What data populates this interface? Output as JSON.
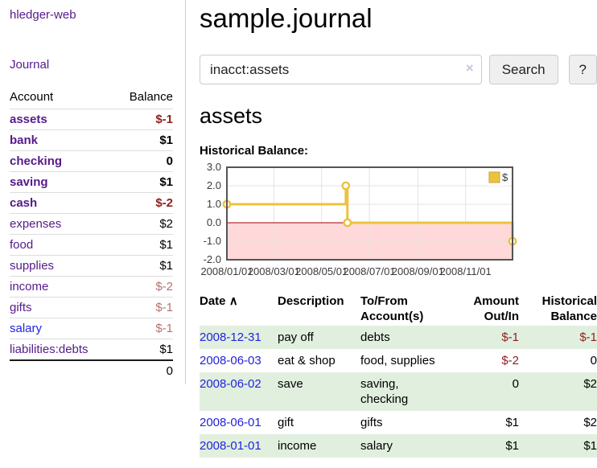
{
  "colors": {
    "link_purple": "#551a8b",
    "link_blue": "#2323dc",
    "negative_strong": "#8f1d1d",
    "negative_soft": "#b47272",
    "row_green": "#e1efdf",
    "chart_line_gold": "#edc240",
    "chart_negative_fill": "#ffd9d9",
    "chart_zero_line": "#aa0000"
  },
  "sidebar": {
    "app_title": "hledger-web",
    "journal_label": "Journal",
    "accounts_table": {
      "headers": {
        "account": "Account",
        "balance": "Balance"
      },
      "rows": [
        {
          "account": "assets",
          "balance": "$-1",
          "level": 1,
          "bold": true,
          "balance_style": "neg-strong",
          "link": "purple"
        },
        {
          "account": "bank",
          "balance": "$1",
          "level": 2,
          "bold": true,
          "balance_style": "normal",
          "link": "purple"
        },
        {
          "account": "checking",
          "balance": "0",
          "level": 3,
          "bold": true,
          "balance_style": "normal",
          "link": "purple"
        },
        {
          "account": "saving",
          "balance": "$1",
          "level": 3,
          "bold": true,
          "balance_style": "normal",
          "link": "purple"
        },
        {
          "account": "cash",
          "balance": "$-2",
          "level": 2,
          "bold": true,
          "balance_style": "neg-strong",
          "link": "purple"
        },
        {
          "account": "expenses",
          "balance": "$2",
          "level": 1,
          "bold": false,
          "balance_style": "normal",
          "link": "purple"
        },
        {
          "account": "food",
          "balance": "$1",
          "level": 2,
          "bold": false,
          "balance_style": "normal",
          "link": "purple"
        },
        {
          "account": "supplies",
          "balance": "$1",
          "level": 2,
          "bold": false,
          "balance_style": "normal",
          "link": "purple"
        },
        {
          "account": "income",
          "balance": "$-2",
          "level": 1,
          "bold": false,
          "balance_style": "neg-soft",
          "link": "purple"
        },
        {
          "account": "gifts",
          "balance": "$-1",
          "level": 2,
          "bold": false,
          "balance_style": "neg-soft",
          "link": "purple"
        },
        {
          "account": "salary",
          "balance": "$-1",
          "level": 2,
          "bold": false,
          "balance_style": "neg-soft",
          "link": "blue"
        },
        {
          "account": "liabilities:debts",
          "balance": "$1",
          "level": 1,
          "bold": false,
          "balance_style": "normal",
          "link": "purple"
        }
      ],
      "total": "0"
    }
  },
  "header": {
    "title": "sample.journal"
  },
  "search": {
    "value": "inacct:assets",
    "clear_icon": "×",
    "search_button_label": "Search",
    "help_button_label": "?"
  },
  "account_page": {
    "heading": "assets",
    "chart_label": "Historical Balance:"
  },
  "chart_data": {
    "type": "line",
    "step": true,
    "title": "Historical Balance:",
    "series": [
      {
        "name": "$",
        "color": "#edc240",
        "points": [
          {
            "date": "2008-01-01",
            "value": 1.0
          },
          {
            "date": "2008-06-01",
            "value": 2.0
          },
          {
            "date": "2008-06-03",
            "value": 0.0
          },
          {
            "date": "2008-12-31",
            "value": -1.0
          }
        ]
      }
    ],
    "x_range": [
      "2008-01-01",
      "2008-12-31"
    ],
    "x_ticks": [
      "2008/01/01",
      "2008/03/01",
      "2008/05/01",
      "2008/07/01",
      "2008/09/01",
      "2008/11/01"
    ],
    "y_ticks": [
      3.0,
      2.0,
      1.0,
      0.0,
      -1.0,
      -2.0
    ],
    "ylim": [
      -2.0,
      3.0
    ],
    "legend": {
      "label": "$",
      "position": "top-right"
    },
    "grid": true,
    "negative_region_color": "#ffd9d9",
    "zero_line_color": "#aa0000"
  },
  "transactions": {
    "headers": {
      "date": "Date",
      "sort_indicator": "∧",
      "description": "Description",
      "accounts": "To/From Account(s)",
      "amount": "Amount Out/In",
      "balance": "Historical Balance"
    },
    "rows": [
      {
        "date": "2008-12-31",
        "description": "pay off",
        "accounts": "debts",
        "amount": "$-1",
        "balance": "$-1",
        "shaded": true
      },
      {
        "date": "2008-06-03",
        "description": "eat & shop",
        "accounts": "food, supplies",
        "amount": "$-2",
        "balance": "0",
        "shaded": false
      },
      {
        "date": "2008-06-02",
        "description": "save",
        "accounts": "saving,\nchecking",
        "amount": "0",
        "balance": "$2",
        "shaded": true
      },
      {
        "date": "2008-06-01",
        "description": "gift",
        "accounts": "gifts",
        "amount": "$1",
        "balance": "$2",
        "shaded": false
      },
      {
        "date": "2008-01-01",
        "description": "income",
        "accounts": "salary",
        "amount": "$1",
        "balance": "$1",
        "shaded": true
      }
    ]
  }
}
